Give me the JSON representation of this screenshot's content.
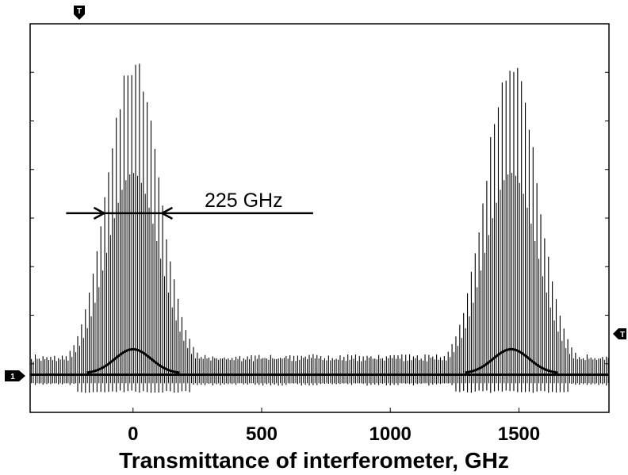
{
  "chart_data": {
    "type": "line",
    "title": "",
    "xlabel": "Transmittance of interferometer, GHz",
    "ylabel": "",
    "xlim": [
      -400,
      1850
    ],
    "ylim": [
      -0.15,
      1.45
    ],
    "x_ticks": [
      0,
      500,
      1000,
      1500
    ],
    "x_tick_labels": [
      "0",
      "500",
      "1000",
      "1500"
    ],
    "grid": false,
    "legend": "none",
    "series": [
      {
        "style": "dense modulation comb (vertical fringes)",
        "fringe_spacing": 15,
        "peaks": [
          {
            "center": 0,
            "max": 1.3
          },
          {
            "center": 1470,
            "max": 1.3
          }
        ],
        "baseline_band": [
          -0.03,
          0.07
        ]
      },
      {
        "style": "inner envelope",
        "peaks": [
          {
            "center": 0,
            "max": 0.7
          },
          {
            "center": 1470,
            "max": 0.7
          }
        ]
      }
    ],
    "annotations": [
      {
        "text": "225 GHz",
        "type": "width-arrows",
        "x_from": -112,
        "x_to": 113,
        "y": 0.67,
        "line_extends_to": 700
      }
    ],
    "markers": {
      "top": "T",
      "left": "1",
      "right": "T"
    }
  }
}
